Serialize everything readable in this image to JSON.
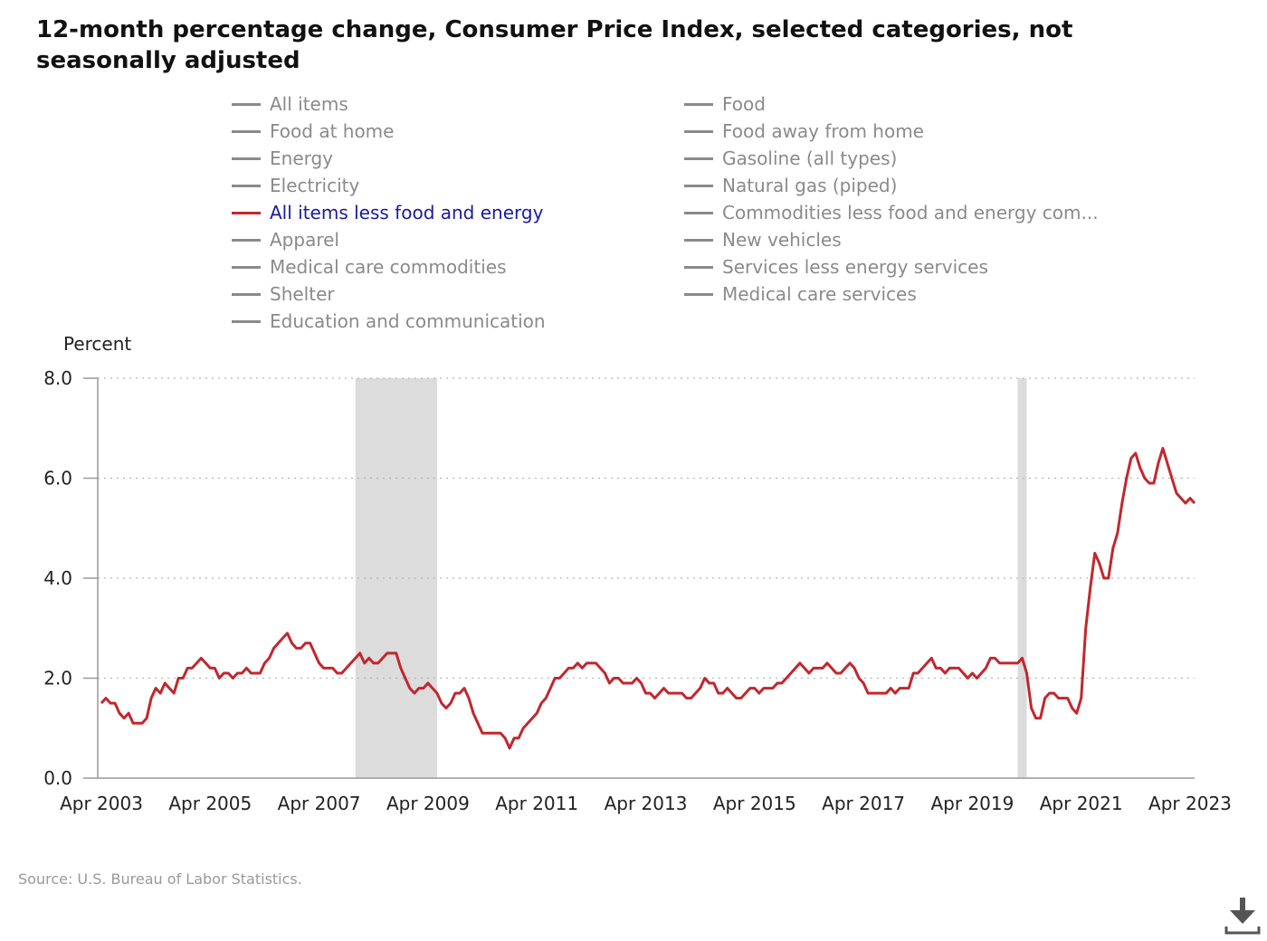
{
  "title": "12-month percentage change, Consumer Price Index, selected categories, not seasonally adjusted",
  "legend": [
    {
      "label": "All items",
      "active": false
    },
    {
      "label": "Food",
      "active": false
    },
    {
      "label": "Food at home",
      "active": false
    },
    {
      "label": "Food away from home",
      "active": false
    },
    {
      "label": "Energy",
      "active": false
    },
    {
      "label": "Gasoline (all types)",
      "active": false
    },
    {
      "label": "Electricity",
      "active": false
    },
    {
      "label": "Natural gas (piped)",
      "active": false
    },
    {
      "label": "All items less food and energy",
      "active": true
    },
    {
      "label": "Commodities less food and energy com...",
      "active": false
    },
    {
      "label": "Apparel",
      "active": false
    },
    {
      "label": "New vehicles",
      "active": false
    },
    {
      "label": "Medical care commodities",
      "active": false
    },
    {
      "label": "Services less energy services",
      "active": false
    },
    {
      "label": "Shelter",
      "active": false
    },
    {
      "label": "Medical care services",
      "active": false
    },
    {
      "label": "Education and communication",
      "active": false
    }
  ],
  "source": "Source: U.S. Bureau of Labor Statistics.",
  "icons": {
    "download": "download-icon"
  },
  "colors": {
    "series": "#c1272d",
    "inactive": "#8a8a8a",
    "active_label": "#1a1aa0",
    "recession": "#dcdcdc"
  },
  "chart_data": {
    "type": "line",
    "ylabel": "Percent",
    "ylim": [
      0,
      8
    ],
    "yticks": [
      "0.0",
      "2.0",
      "4.0",
      "6.0",
      "8.0"
    ],
    "xticks": [
      "Apr 2003",
      "Apr 2005",
      "Apr 2007",
      "Apr 2009",
      "Apr 2011",
      "Apr 2013",
      "Apr 2015",
      "Apr 2017",
      "Apr 2019",
      "Apr 2021",
      "Apr 2023"
    ],
    "grid": "horizontal dotted",
    "recession_shading": [
      {
        "start": "2007-12",
        "end": "2009-06"
      },
      {
        "start": "2020-02",
        "end": "2020-04"
      }
    ],
    "series": [
      {
        "name": "All items less food and energy",
        "start": "2003-04",
        "frequency": "monthly",
        "values": [
          1.5,
          1.6,
          1.5,
          1.5,
          1.3,
          1.2,
          1.3,
          1.1,
          1.1,
          1.1,
          1.2,
          1.6,
          1.8,
          1.7,
          1.9,
          1.8,
          1.7,
          2.0,
          2.0,
          2.2,
          2.2,
          2.3,
          2.4,
          2.3,
          2.2,
          2.2,
          2.0,
          2.1,
          2.1,
          2.0,
          2.1,
          2.1,
          2.2,
          2.1,
          2.1,
          2.1,
          2.3,
          2.4,
          2.6,
          2.7,
          2.8,
          2.9,
          2.7,
          2.6,
          2.6,
          2.7,
          2.7,
          2.5,
          2.3,
          2.2,
          2.2,
          2.2,
          2.1,
          2.1,
          2.2,
          2.3,
          2.4,
          2.5,
          2.3,
          2.4,
          2.3,
          2.3,
          2.4,
          2.5,
          2.5,
          2.5,
          2.2,
          2.0,
          1.8,
          1.7,
          1.8,
          1.8,
          1.9,
          1.8,
          1.7,
          1.5,
          1.4,
          1.5,
          1.7,
          1.7,
          1.8,
          1.6,
          1.3,
          1.1,
          0.9,
          0.9,
          0.9,
          0.9,
          0.9,
          0.8,
          0.6,
          0.8,
          0.8,
          1.0,
          1.1,
          1.2,
          1.3,
          1.5,
          1.6,
          1.8,
          2.0,
          2.0,
          2.1,
          2.2,
          2.2,
          2.3,
          2.2,
          2.3,
          2.3,
          2.3,
          2.2,
          2.1,
          1.9,
          2.0,
          2.0,
          1.9,
          1.9,
          1.9,
          2.0,
          1.9,
          1.7,
          1.7,
          1.6,
          1.7,
          1.8,
          1.7,
          1.7,
          1.7,
          1.7,
          1.6,
          1.6,
          1.7,
          1.8,
          2.0,
          1.9,
          1.9,
          1.7,
          1.7,
          1.8,
          1.7,
          1.6,
          1.6,
          1.7,
          1.8,
          1.8,
          1.7,
          1.8,
          1.8,
          1.8,
          1.9,
          1.9,
          2.0,
          2.1,
          2.2,
          2.3,
          2.2,
          2.1,
          2.2,
          2.2,
          2.2,
          2.3,
          2.2,
          2.1,
          2.1,
          2.2,
          2.3,
          2.2,
          2.0,
          1.9,
          1.7,
          1.7,
          1.7,
          1.7,
          1.7,
          1.8,
          1.7,
          1.8,
          1.8,
          1.8,
          2.1,
          2.1,
          2.2,
          2.3,
          2.4,
          2.2,
          2.2,
          2.1,
          2.2,
          2.2,
          2.2,
          2.1,
          2.0,
          2.1,
          2.0,
          2.1,
          2.2,
          2.4,
          2.4,
          2.3,
          2.3,
          2.3,
          2.3,
          2.3,
          2.4,
          2.1,
          1.4,
          1.2,
          1.2,
          1.6,
          1.7,
          1.7,
          1.6,
          1.6,
          1.6,
          1.4,
          1.3,
          1.6,
          3.0,
          3.8,
          4.5,
          4.3,
          4.0,
          4.0,
          4.6,
          4.9,
          5.5,
          6.0,
          6.4,
          6.5,
          6.2,
          6.0,
          5.9,
          5.9,
          6.3,
          6.6,
          6.3,
          6.0,
          5.7,
          5.6,
          5.5,
          5.6,
          5.5
        ]
      }
    ]
  }
}
